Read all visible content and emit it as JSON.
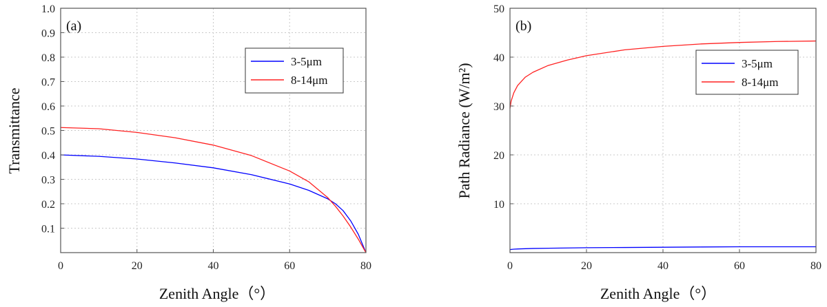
{
  "chart_data": [
    {
      "type": "line",
      "panel_label": "(a)",
      "xlabel": "Zenith Angle（°）",
      "ylabel": "Transmittance",
      "xlim": [
        0,
        80
      ],
      "ylim": [
        0,
        1.0
      ],
      "xticks": [
        "0",
        "20",
        "40",
        "60",
        "80"
      ],
      "yticks": [
        "0.1",
        "0.2",
        "0.3",
        "0.4",
        "0.5",
        "0.6",
        "0.7",
        "0.8",
        "0.9",
        "1.0"
      ],
      "grid": true,
      "legend_position": "top-right",
      "x": [
        0,
        10,
        20,
        30,
        40,
        50,
        60,
        65,
        70,
        72,
        74,
        76,
        78,
        80
      ],
      "series": [
        {
          "name": "3-5μm",
          "color": "#0000ff",
          "values": [
            0.4,
            0.394,
            0.383,
            0.367,
            0.347,
            0.319,
            0.281,
            0.255,
            0.22,
            0.2,
            0.172,
            0.13,
            0.075,
            0.0
          ]
        },
        {
          "name": "8-14μm",
          "color": "#ff2020",
          "values": [
            0.512,
            0.507,
            0.492,
            0.47,
            0.44,
            0.397,
            0.334,
            0.29,
            0.225,
            0.19,
            0.15,
            0.105,
            0.055,
            0.0
          ]
        }
      ]
    },
    {
      "type": "line",
      "panel_label": "(b)",
      "xlabel": "Zenith Angle（°）",
      "ylabel": "Path Radiance (W/m²)",
      "xlim": [
        0,
        80
      ],
      "ylim": [
        0,
        50
      ],
      "xticks": [
        "0",
        "20",
        "40",
        "60",
        "80"
      ],
      "yticks": [
        "10",
        "20",
        "30",
        "40",
        "50"
      ],
      "grid": true,
      "legend_position": "top-right",
      "x": [
        0,
        0.3,
        1,
        2,
        4,
        6,
        10,
        15,
        20,
        30,
        40,
        50,
        60,
        70,
        80
      ],
      "series": [
        {
          "name": "3-5μm",
          "color": "#0000ff",
          "values": [
            0.6,
            0.65,
            0.7,
            0.75,
            0.8,
            0.85,
            0.9,
            0.95,
            1.0,
            1.05,
            1.1,
            1.15,
            1.2,
            1.2,
            1.2
          ]
        },
        {
          "name": "8-14μm",
          "color": "#ff2020",
          "values": [
            29.5,
            31.0,
            32.7,
            34.2,
            35.9,
            36.9,
            38.3,
            39.4,
            40.3,
            41.5,
            42.2,
            42.7,
            43.0,
            43.2,
            43.3
          ]
        }
      ]
    }
  ]
}
